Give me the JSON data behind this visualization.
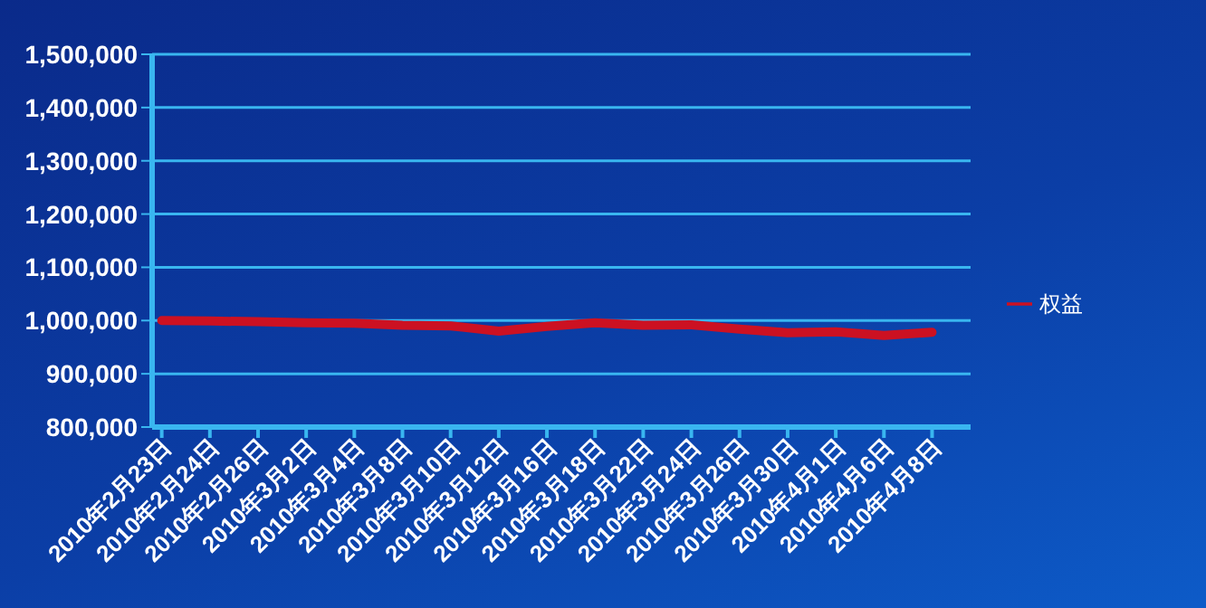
{
  "chart_data": {
    "type": "line",
    "categories": [
      "2010年2月23日",
      "2010年2月24日",
      "2010年2月26日",
      "2010年3月2日",
      "2010年3月4日",
      "2010年3月8日",
      "2010年3月10日",
      "2010年3月12日",
      "2010年3月16日",
      "2010年3月18日",
      "2010年3月22日",
      "2010年3月24日",
      "2010年3月26日",
      "2010年3月30日",
      "2010年4月1日",
      "2010年4月6日",
      "2010年4月8日"
    ],
    "series": [
      {
        "name": "权益",
        "color": "#cc1122",
        "values": [
          1000000,
          999000,
          998000,
          996000,
          995000,
          991000,
          990000,
          980000,
          989000,
          996000,
          991000,
          992000,
          984000,
          977000,
          979000,
          972000,
          978000
        ]
      }
    ],
    "ylim": [
      800000,
      1500000
    ],
    "yticks": [
      {
        "value": 800000,
        "label": "800,000"
      },
      {
        "value": 900000,
        "label": "900,000"
      },
      {
        "value": 1000000,
        "label": "1,000,000"
      },
      {
        "value": 1100000,
        "label": "1,100,000"
      },
      {
        "value": 1200000,
        "label": "1,200,000"
      },
      {
        "value": 1300000,
        "label": "1,300,000"
      },
      {
        "value": 1400000,
        "label": "1,400,000"
      },
      {
        "value": 1500000,
        "label": "1,500,000"
      }
    ],
    "grid": "y",
    "legend": "right",
    "marker": "none",
    "line_style": "solid"
  }
}
